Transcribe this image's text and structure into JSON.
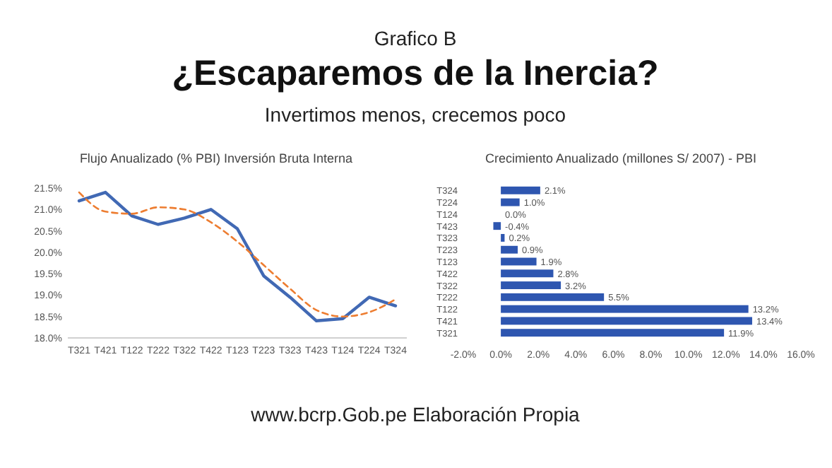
{
  "chart_data": [
    {
      "type": "line",
      "title": "Flujo Anualizado (% PBI) Inversión Bruta Interna",
      "annotations": [
        "Grafico B",
        "¿Escaparemos de la Inercia?",
        "Invertimos menos, crecemos poco",
        "www.bcrp.Gob.pe Elaboración Propia"
      ],
      "categories": [
        "T321",
        "T421",
        "T122",
        "T222",
        "T322",
        "T422",
        "T123",
        "T223",
        "T323",
        "T423",
        "T124",
        "T224",
        "T324"
      ],
      "series": [
        {
          "color": "#4169b4",
          "line_style": "solid",
          "values": [
            21.2,
            21.4,
            20.85,
            20.65,
            20.8,
            21.0,
            20.55,
            19.45,
            18.95,
            18.4,
            18.45,
            18.95,
            18.75
          ]
        },
        {
          "color": "#ed7d31",
          "line_style": "dashed",
          "values": [
            21.4,
            20.95,
            20.9,
            21.05,
            21.0,
            20.7,
            20.25,
            19.7,
            19.15,
            18.65,
            18.5,
            18.6,
            18.9
          ]
        }
      ],
      "ylim": [
        18.0,
        21.5
      ],
      "yticks": [
        {
          "value": 18.0,
          "label": "18.0%"
        },
        {
          "value": 18.5,
          "label": "18.5%"
        },
        {
          "value": 19.0,
          "label": "19.0%"
        },
        {
          "value": 19.5,
          "label": "19.5%"
        },
        {
          "value": 20.0,
          "label": "20.0%"
        },
        {
          "value": 20.5,
          "label": "20.5%"
        },
        {
          "value": 21.0,
          "label": "21.0%"
        },
        {
          "value": 21.5,
          "label": "21.5%"
        }
      ],
      "grid": false
    },
    {
      "type": "bar",
      "orientation": "horizontal",
      "title": "Crecimiento Anualizado (millones S/ 2007) - PBI",
      "categories": [
        "T324",
        "T224",
        "T124",
        "T423",
        "T323",
        "T223",
        "T123",
        "T422",
        "T322",
        "T222",
        "T122",
        "T421",
        "T321"
      ],
      "values": [
        2.1,
        1.0,
        0.0,
        -0.4,
        0.2,
        0.9,
        1.9,
        2.8,
        3.2,
        5.5,
        13.2,
        13.4,
        11.9
      ],
      "value_labels": [
        "2.1%",
        "1.0%",
        "0.0%",
        "-0.4%",
        "0.2%",
        "0.9%",
        "1.9%",
        "2.8%",
        "3.2%",
        "5.5%",
        "13.2%",
        "13.4%",
        "11.9%"
      ],
      "color": "#2e56b0",
      "xlim": [
        -2,
        16
      ],
      "xticks": [
        {
          "value": -2,
          "label": "-2.0%"
        },
        {
          "value": 0,
          "label": "0.0%"
        },
        {
          "value": 2,
          "label": "2.0%"
        },
        {
          "value": 4,
          "label": "4.0%"
        },
        {
          "value": 6,
          "label": "6.0%"
        },
        {
          "value": 8,
          "label": "8.0%"
        },
        {
          "value": 10,
          "label": "10.0%"
        },
        {
          "value": 12,
          "label": "12.0%"
        },
        {
          "value": 14,
          "label": "14.0%"
        },
        {
          "value": 16,
          "label": "16.0%"
        }
      ],
      "grid": false
    }
  ]
}
